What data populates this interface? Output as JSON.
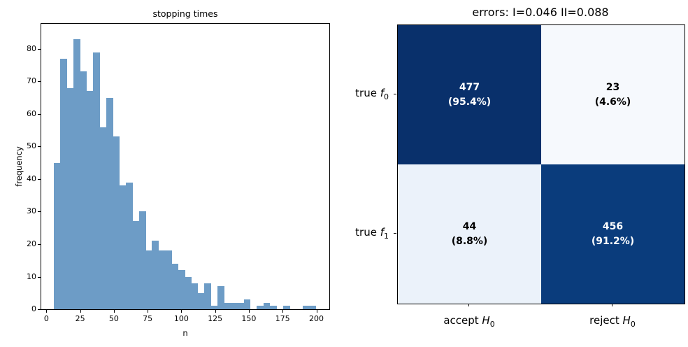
{
  "figure": {
    "background": "#ffffff",
    "spine_color": "#000000"
  },
  "chart_data": [
    {
      "type": "bar",
      "subtype": "histogram",
      "title": "stopping times",
      "xlabel": "n",
      "ylabel": "frequency",
      "bar_color": "#6d9cc6",
      "grid": false,
      "legend": null,
      "xlim": [
        -3.8,
        209.6
      ],
      "ylim": [
        0,
        87.7
      ],
      "xticks": [
        0,
        25,
        50,
        75,
        100,
        125,
        150,
        175,
        200
      ],
      "yticks": [
        0,
        10,
        20,
        30,
        40,
        50,
        60,
        70,
        80
      ],
      "bin_start": 5.5,
      "bin_width": 4.85,
      "bin_heights": [
        45,
        77,
        68,
        83,
        73,
        67,
        79,
        56,
        65,
        53,
        38,
        39,
        27,
        30,
        18,
        21,
        18,
        18,
        14,
        12,
        10,
        8,
        5,
        8,
        1,
        7,
        2,
        2,
        2,
        3,
        0,
        1,
        2,
        1,
        0,
        1,
        0,
        0,
        1,
        1
      ]
    },
    {
      "type": "heatmap",
      "subtype": "confusion-matrix",
      "title": "errors: I=0.046 II=0.088",
      "type_I_error": 0.046,
      "type_II_error": 0.088,
      "row_labels": [
        {
          "prefix": "true ",
          "var": "f",
          "sub": "0"
        },
        {
          "prefix": "true ",
          "var": "f",
          "sub": "1"
        }
      ],
      "col_labels": [
        {
          "prefix": "accept ",
          "var": "H",
          "sub": "0"
        },
        {
          "prefix": "reject ",
          "var": "H",
          "sub": "0"
        }
      ],
      "values": [
        [
          477,
          23
        ],
        [
          44,
          456
        ]
      ],
      "percent_labels": [
        [
          "(95.4%)",
          "(4.6%)"
        ],
        [
          "(8.8%)",
          "(91.2%)"
        ]
      ],
      "cell_colors": [
        [
          "#09306b",
          "#f6f9fd"
        ],
        [
          "#ebf2fa",
          "#0a3c7c"
        ]
      ],
      "text_colors": [
        [
          "#ffffff",
          "#000000"
        ],
        [
          "#000000",
          "#ffffff"
        ]
      ],
      "colormap": "Blues"
    }
  ]
}
